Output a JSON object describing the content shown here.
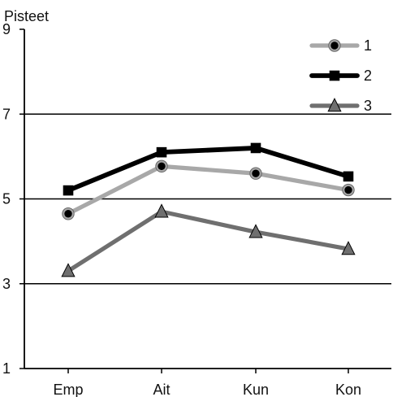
{
  "chart_data": {
    "type": "line",
    "ylabel": "Pisteet",
    "categories": [
      "Emp",
      "Ait",
      "Kun",
      "Kon"
    ],
    "ylim": [
      1,
      9
    ],
    "yticks": [
      1,
      3,
      5,
      7,
      9
    ],
    "grid": true,
    "legend_position": "top-right",
    "series": [
      {
        "name": "1",
        "values": [
          4.65,
          5.77,
          5.6,
          5.21
        ],
        "color": "#a8a8a8",
        "marker": "circle"
      },
      {
        "name": "2",
        "values": [
          5.2,
          6.1,
          6.2,
          5.53
        ],
        "color": "#000000",
        "marker": "square"
      },
      {
        "name": "3",
        "values": [
          3.3,
          4.7,
          4.22,
          3.82
        ],
        "color": "#6f6f6f",
        "marker": "triangle"
      }
    ]
  }
}
